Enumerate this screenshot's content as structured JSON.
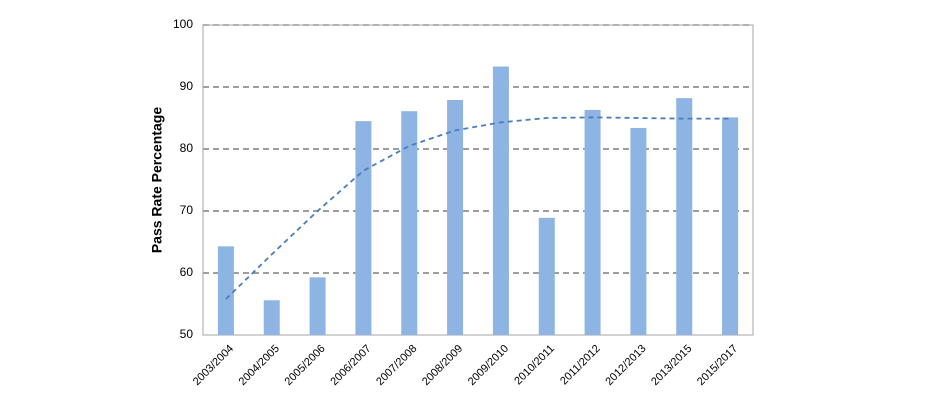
{
  "chart_data": {
    "type": "bar",
    "y_label": "Pass Rate Percentage",
    "categories": [
      "2003/2004",
      "2004/2005",
      "2005/2006",
      "2006/2007",
      "2007/2008",
      "2008/2009",
      "2009/2010",
      "2010/2011",
      "2011/2012",
      "2012/2013",
      "2013/2015",
      "2015/2017"
    ],
    "series": [
      {
        "type": "bar",
        "color": "#8eb4e3",
        "values": [
          64.3,
          55.6,
          59.3,
          84.5,
          86.1,
          87.9,
          93.3,
          68.9,
          86.3,
          83.4,
          88.2,
          85.1
        ]
      },
      {
        "type": "line",
        "color": "#4a7ebb",
        "dashed": true,
        "values": [
          55.8,
          63.0,
          70.0,
          76.5,
          80.5,
          83.0,
          84.3,
          85.0,
          85.1,
          85.0,
          84.9,
          84.9
        ]
      }
    ],
    "ylim": [
      50,
      100
    ],
    "yticks": [
      50,
      60,
      70,
      80,
      90,
      100
    ],
    "grid": true
  }
}
